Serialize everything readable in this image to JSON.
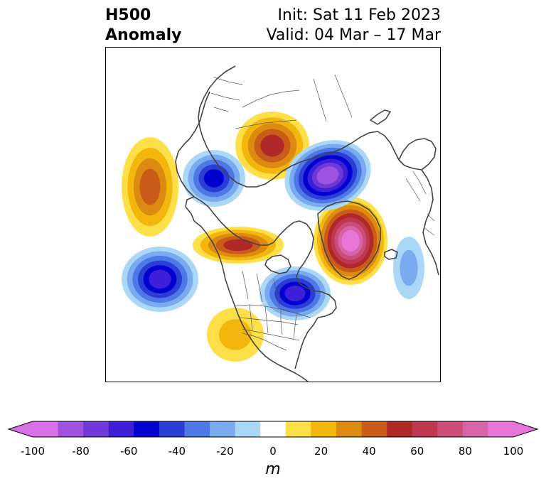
{
  "header": {
    "title_line1": "H500",
    "title_line2": "Anomaly",
    "init_text": "Init: Sat 11 Feb 2023",
    "valid_text": "Valid: 04 Mar – 17 Mar"
  },
  "colorbar": {
    "levels": [
      -100,
      -90,
      -80,
      -70,
      -60,
      -50,
      -40,
      -30,
      -20,
      -10,
      10,
      20,
      30,
      40,
      50,
      60,
      70,
      80,
      90,
      100
    ],
    "colors": [
      "#da70e6",
      "#9e53e0",
      "#7038d8",
      "#3f1ed8",
      "#0000d0",
      "#2a3ed6",
      "#4e78e6",
      "#7aaaf0",
      "#acd8f8",
      "#ffffff",
      "#fde047",
      "#f3b60c",
      "#dc8a10",
      "#c85c18",
      "#b02828",
      "#c03850",
      "#cc4e78",
      "#d864a8",
      "#e876d8"
    ],
    "ticks": [
      "-100",
      "-80",
      "-60",
      "-40",
      "-20",
      "0",
      "20",
      "40",
      "60",
      "80",
      "100"
    ],
    "unit": "m",
    "extend": "both"
  },
  "map": {
    "projection": "north-polar-stereographic",
    "field": "500 hPa geopotential height anomaly",
    "features": [
      {
        "sign": "positive",
        "peak_m": 90,
        "region": "North Atlantic / Greenland-Iceland"
      },
      {
        "sign": "positive",
        "peak_m": 55,
        "region": "Barents-Kara / northern Russia"
      },
      {
        "sign": "positive",
        "peak_m": 55,
        "region": "Alaska / Bering Strait"
      },
      {
        "sign": "positive",
        "peak_m": 40,
        "region": "Central North Pacific"
      },
      {
        "sign": "positive",
        "peak_m": 20,
        "region": "Southwestern United States / Mexico"
      },
      {
        "sign": "negative",
        "peak_m": -80,
        "region": "Northern Europe / Scandinavia"
      },
      {
        "sign": "negative",
        "peak_m": -50,
        "region": "Siberia / Sea of Okhotsk"
      },
      {
        "sign": "negative",
        "peak_m": -60,
        "region": "Hudson Bay / eastern Canada"
      },
      {
        "sign": "negative",
        "peak_m": -60,
        "region": "Eastern North Pacific"
      },
      {
        "sign": "negative",
        "peak_m": -20,
        "region": "Central North Atlantic"
      }
    ]
  }
}
